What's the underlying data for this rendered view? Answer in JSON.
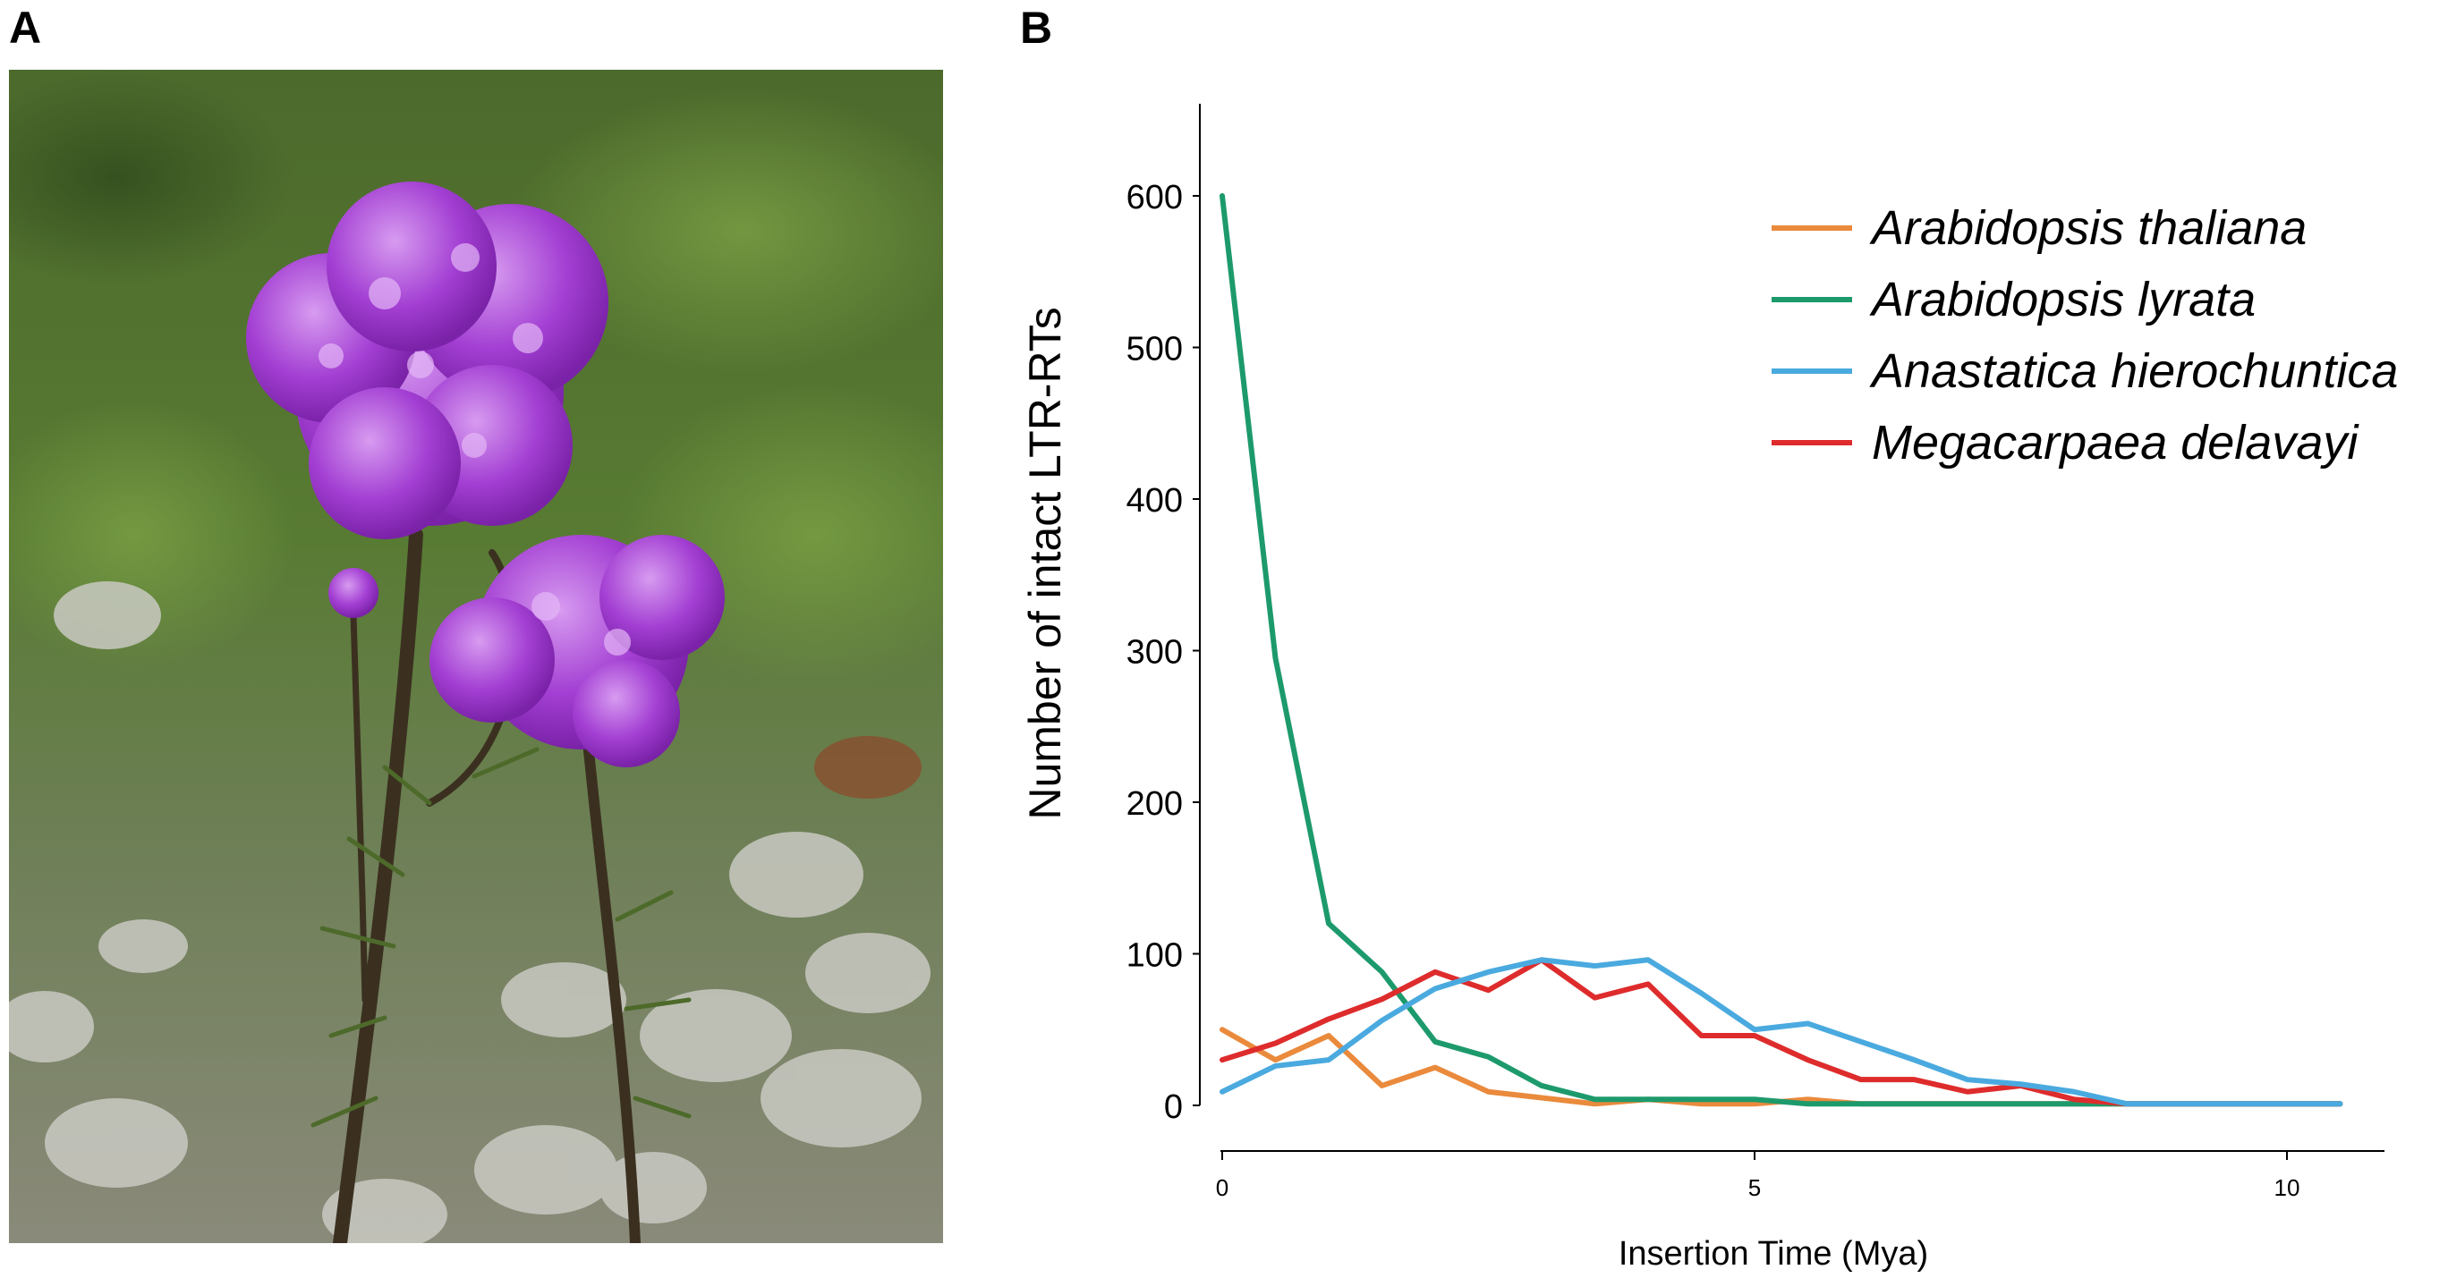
{
  "panels": {
    "a_label": "A",
    "b_label": "B"
  },
  "colors": {
    "thaliana": "#ea8a3c",
    "lyrata": "#1d9a6c",
    "hierochuntica": "#4aaadf",
    "delavayi": "#de2c2c"
  },
  "chart_data": {
    "type": "line",
    "title": "",
    "xlabel": "Insertion Time (Mya)",
    "ylabel": "Number of intact LTR-RTs",
    "xlim": [
      0,
      10.5
    ],
    "ylim": [
      0,
      650
    ],
    "xticks": [
      0,
      5,
      10
    ],
    "yticks": [
      0,
      100,
      200,
      300,
      400,
      500,
      600
    ],
    "legend_position": "top-right",
    "grid": false,
    "x": [
      0,
      0.5,
      1,
      1.5,
      2,
      2.5,
      3,
      3.5,
      4,
      4.5,
      5,
      5.5,
      6,
      6.5,
      7,
      7.5,
      8,
      8.5,
      9,
      9.5,
      10,
      10.5
    ],
    "series": [
      {
        "name": "Arabidopsis thaliana",
        "color": "#ea8a3c",
        "values": [
          50,
          30,
          46,
          13,
          25,
          9,
          5,
          1,
          4,
          1,
          1,
          4,
          1,
          1,
          1,
          1,
          1,
          1,
          1,
          1,
          1,
          1
        ]
      },
      {
        "name": "Arabidopsis lyrata",
        "color": "#1d9a6c",
        "values": [
          600,
          295,
          120,
          88,
          42,
          32,
          13,
          4,
          4,
          4,
          4,
          1,
          1,
          1,
          1,
          1,
          1,
          1,
          1,
          1,
          1,
          1
        ]
      },
      {
        "name": "Anastatica hierochuntica",
        "color": "#4aaadf",
        "values": [
          9,
          26,
          30,
          56,
          77,
          88,
          96,
          92,
          96,
          74,
          50,
          54,
          42,
          30,
          17,
          14,
          9,
          1,
          1,
          1,
          1,
          1
        ]
      },
      {
        "name": "Megacarpaea delavayi",
        "color": "#de2c2c",
        "values": [
          30,
          41,
          57,
          70,
          88,
          76,
          96,
          71,
          80,
          46,
          46,
          30,
          17,
          17,
          9,
          13,
          4,
          1,
          1,
          1,
          1,
          1
        ]
      }
    ]
  }
}
